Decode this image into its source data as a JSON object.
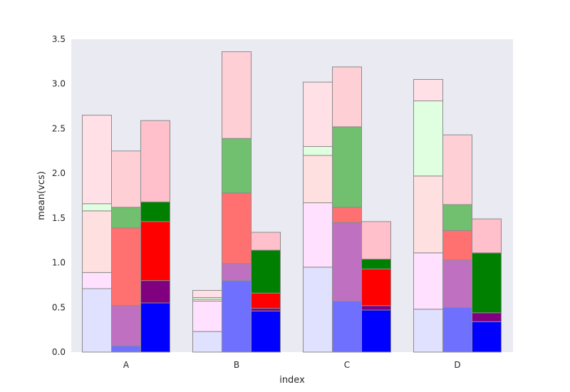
{
  "chart_data": {
    "type": "bar",
    "stacked": true,
    "xlabel": "index",
    "ylabel": "mean(vcs)",
    "ylim": [
      0,
      3.5
    ],
    "yticks": [
      "0.0",
      "0.5",
      "1.0",
      "1.5",
      "2.0",
      "2.5",
      "3.0",
      "3.5"
    ],
    "categories": [
      "A",
      "B",
      "C",
      "D"
    ],
    "grid": false,
    "background": "#eaeaf2",
    "bars_per_category": 3,
    "bars": [
      {
        "category": "A",
        "slot": 0,
        "segments": [
          {
            "value": 0.71,
            "color": "#e0e0ff"
          },
          {
            "value": 0.18,
            "color": "#ffe0ff"
          },
          {
            "value": 0.69,
            "color": "#ffe0e0"
          },
          {
            "value": 0.08,
            "color": "#e0ffe0"
          },
          {
            "value": 0.99,
            "color": "#ffe0e6"
          }
        ]
      },
      {
        "category": "A",
        "slot": 1,
        "segments": [
          {
            "value": 0.07,
            "color": "#7070ff"
          },
          {
            "value": 0.45,
            "color": "#c070c0"
          },
          {
            "value": 0.87,
            "color": "#ff7070"
          },
          {
            "value": 0.23,
            "color": "#70c070"
          },
          {
            "value": 0.63,
            "color": "#ffcfd6"
          }
        ]
      },
      {
        "category": "A",
        "slot": 2,
        "segments": [
          {
            "value": 0.55,
            "color": "#0000ff"
          },
          {
            "value": 0.25,
            "color": "#800080"
          },
          {
            "value": 0.66,
            "color": "#ff0000"
          },
          {
            "value": 0.22,
            "color": "#008000"
          },
          {
            "value": 0.91,
            "color": "#ffc0cb"
          }
        ]
      },
      {
        "category": "B",
        "slot": 0,
        "segments": [
          {
            "value": 0.23,
            "color": "#e0e0ff"
          },
          {
            "value": 0.34,
            "color": "#ffe0ff"
          },
          {
            "value": 0.02,
            "color": "#ffe0e0"
          },
          {
            "value": 0.02,
            "color": "#e0ffe0"
          },
          {
            "value": 0.08,
            "color": "#ffe0e6"
          }
        ]
      },
      {
        "category": "B",
        "slot": 1,
        "segments": [
          {
            "value": 0.8,
            "color": "#7070ff"
          },
          {
            "value": 0.19,
            "color": "#c070c0"
          },
          {
            "value": 0.79,
            "color": "#ff7070"
          },
          {
            "value": 0.61,
            "color": "#70c070"
          },
          {
            "value": 0.97,
            "color": "#ffcfd6"
          }
        ]
      },
      {
        "category": "B",
        "slot": 2,
        "segments": [
          {
            "value": 0.46,
            "color": "#0000ff"
          },
          {
            "value": 0.03,
            "color": "#800080"
          },
          {
            "value": 0.17,
            "color": "#ff0000"
          },
          {
            "value": 0.48,
            "color": "#008000"
          },
          {
            "value": 0.2,
            "color": "#ffc0cb"
          }
        ]
      },
      {
        "category": "C",
        "slot": 0,
        "segments": [
          {
            "value": 0.95,
            "color": "#e0e0ff"
          },
          {
            "value": 0.72,
            "color": "#ffe0ff"
          },
          {
            "value": 0.53,
            "color": "#ffe0e0"
          },
          {
            "value": 0.1,
            "color": "#e0ffe0"
          },
          {
            "value": 0.72,
            "color": "#ffe0e6"
          }
        ]
      },
      {
        "category": "C",
        "slot": 1,
        "segments": [
          {
            "value": 0.57,
            "color": "#7070ff"
          },
          {
            "value": 0.88,
            "color": "#c070c0"
          },
          {
            "value": 0.17,
            "color": "#ff7070"
          },
          {
            "value": 0.9,
            "color": "#70c070"
          },
          {
            "value": 0.67,
            "color": "#ffcfd6"
          }
        ]
      },
      {
        "category": "C",
        "slot": 2,
        "segments": [
          {
            "value": 0.47,
            "color": "#0000ff"
          },
          {
            "value": 0.05,
            "color": "#800080"
          },
          {
            "value": 0.41,
            "color": "#ff0000"
          },
          {
            "value": 0.11,
            "color": "#008000"
          },
          {
            "value": 0.42,
            "color": "#ffc0cb"
          }
        ]
      },
      {
        "category": "D",
        "slot": 0,
        "segments": [
          {
            "value": 0.48,
            "color": "#e0e0ff"
          },
          {
            "value": 0.63,
            "color": "#ffe0ff"
          },
          {
            "value": 0.86,
            "color": "#ffe0e0"
          },
          {
            "value": 0.84,
            "color": "#e0ffe0"
          },
          {
            "value": 0.24,
            "color": "#ffe0e6"
          }
        ]
      },
      {
        "category": "D",
        "slot": 1,
        "segments": [
          {
            "value": 0.5,
            "color": "#7070ff"
          },
          {
            "value": 0.53,
            "color": "#c070c0"
          },
          {
            "value": 0.33,
            "color": "#ff7070"
          },
          {
            "value": 0.29,
            "color": "#70c070"
          },
          {
            "value": 0.78,
            "color": "#ffcfd6"
          }
        ]
      },
      {
        "category": "D",
        "slot": 2,
        "segments": [
          {
            "value": 0.34,
            "color": "#0000ff"
          },
          {
            "value": 0.1,
            "color": "#800080"
          },
          {
            "value": 0.67,
            "color": "#008000"
          },
          {
            "value": 0.38,
            "color": "#ffc0cb"
          }
        ]
      }
    ]
  }
}
